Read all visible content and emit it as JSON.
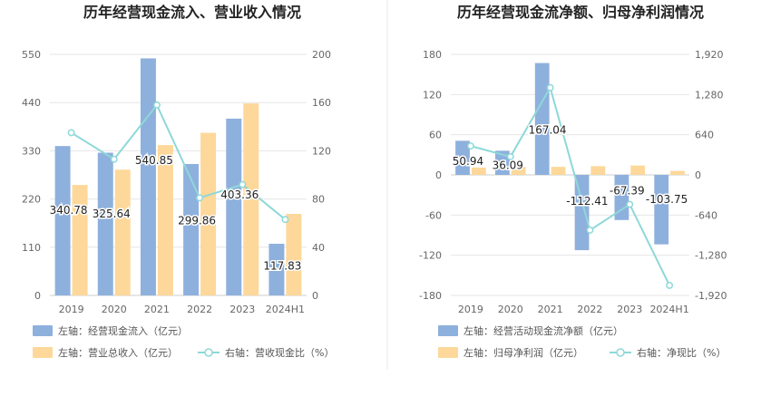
{
  "colors": {
    "bar_left": "#8eb0dd",
    "bar_right": "#fdd89a",
    "line": "#8ed8d8",
    "grid": "#e6e6e6",
    "axis": "#cccccc",
    "divider": "#e8e8e8"
  },
  "chart_data": [
    {
      "type": "bar",
      "title": "历年经营现金流入、营业收入情况",
      "categories": [
        "2019",
        "2020",
        "2021",
        "2022",
        "2023",
        "2024H1"
      ],
      "left_axis": {
        "ticks": [
          "0",
          "110",
          "220",
          "330",
          "440",
          "550"
        ],
        "ylim": [
          0,
          550
        ]
      },
      "right_axis": {
        "ticks": [
          "0",
          "40",
          "80",
          "120",
          "160",
          "200"
        ],
        "ylim": [
          0,
          200
        ]
      },
      "series": [
        {
          "name": "左轴：经营现金流入（亿元）",
          "axis": "left",
          "kind": "bar",
          "values": [
            340.78,
            325.64,
            540.85,
            299.86,
            403.36,
            117.83
          ],
          "labels": [
            "340.78",
            "325.64",
            "540.85",
            "299.86",
            "403.36",
            "117.83"
          ]
        },
        {
          "name": "左轴：营业总收入（亿元）",
          "axis": "left",
          "kind": "bar",
          "values": [
            252,
            287,
            343,
            371,
            438,
            186
          ]
        },
        {
          "name": "右轴：营收现金比（%）",
          "axis": "right",
          "kind": "line",
          "values": [
            135,
            113,
            158,
            81,
            92,
            63
          ]
        }
      ]
    },
    {
      "type": "bar",
      "title": "历年经营现金流净额、归母净利润情况",
      "categories": [
        "2019",
        "2020",
        "2021",
        "2022",
        "2023",
        "2024H1"
      ],
      "left_axis": {
        "ticks": [
          "-180",
          "-120",
          "-60",
          "0",
          "60",
          "120",
          "180"
        ],
        "ylim": [
          -180,
          180
        ]
      },
      "right_axis": {
        "ticks": [
          "-1,920",
          "-1,280",
          "-640",
          "0",
          "640",
          "1,280",
          "1,920"
        ],
        "ylim": [
          -1920,
          1920
        ]
      },
      "series": [
        {
          "name": "左轴：经营活动现金流净额（亿元）",
          "axis": "left",
          "kind": "bar",
          "values": [
            50.94,
            36.09,
            167.04,
            -112.41,
            -67.39,
            -103.75
          ],
          "labels": [
            "50.94",
            "36.09",
            "167.04",
            "-112.41",
            "-67.39",
            "-103.75"
          ]
        },
        {
          "name": "左轴：归母净利润（亿元）",
          "axis": "left",
          "kind": "bar",
          "values": [
            11,
            12,
            12,
            13,
            14,
            6
          ]
        },
        {
          "name": "右轴：净现比（%）",
          "axis": "right",
          "kind": "line",
          "values": [
            460,
            290,
            1390,
            -880,
            -470,
            -1760
          ]
        }
      ]
    }
  ]
}
